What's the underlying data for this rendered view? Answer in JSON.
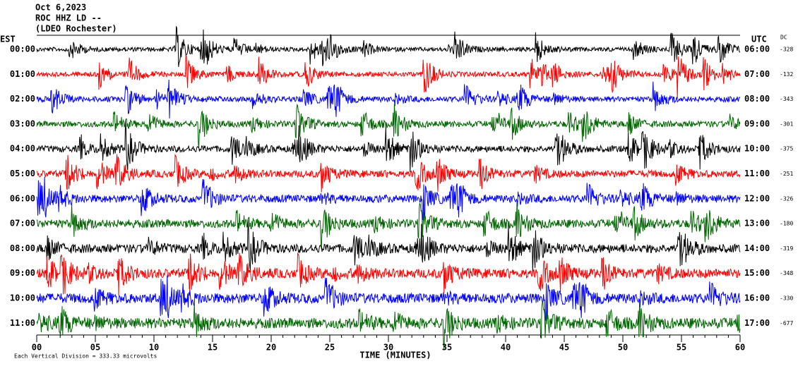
{
  "header": {
    "date": "Oct 6,2023",
    "station": "ROC HHZ LD --",
    "network": "(LDEO Rochester)"
  },
  "chart_data": {
    "type": "helicorder",
    "left_axis_label": "EST",
    "right_axis_label": "UTC",
    "dc_label": "DC",
    "x_label": "TIME (MINUTES)",
    "note": "Each Vertical Division = 333.33 microvolts",
    "xlim": [
      0,
      60
    ],
    "xticks": [
      {
        "value": 0,
        "label": "00"
      },
      {
        "value": 5,
        "label": "05"
      },
      10,
      15,
      20,
      25,
      30,
      35,
      40,
      45,
      50,
      55,
      60
    ],
    "est": [
      "00:00",
      "01:00",
      "02:00",
      "03:00",
      "04:00",
      "05:00",
      "06:00",
      "07:00",
      "08:00",
      "09:00",
      "10:00",
      "11:00"
    ],
    "utc": [
      "06:00",
      "07:00",
      "08:00",
      "09:00",
      "10:00",
      "11:00",
      "12:00",
      "13:00",
      "14:00",
      "15:00",
      "16:00",
      "17:00"
    ],
    "dc": [
      -328,
      -132,
      -343,
      -301,
      -375,
      -251,
      -326,
      -180,
      -319,
      -348,
      -330,
      -677
    ],
    "colors": [
      "#000000",
      "#ff0000",
      "#0000ff",
      "#006600"
    ]
  }
}
